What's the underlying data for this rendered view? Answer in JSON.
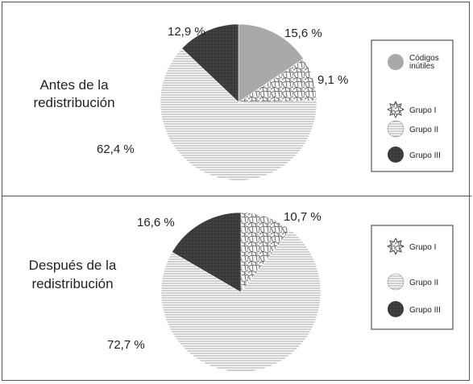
{
  "chart_data": [
    {
      "type": "pie",
      "title_lines": [
        "Antes de la",
        "redistribución"
      ],
      "slices": [
        {
          "name": "Códigos inútiles",
          "value": 15.6,
          "label": "15,6 %",
          "pattern": "gray"
        },
        {
          "name": "Grupo I",
          "value": 9.1,
          "label": "9,1 %",
          "pattern": "cells"
        },
        {
          "name": "Grupo II",
          "value": 62.4,
          "label": "62,4 %",
          "pattern": "stripes"
        },
        {
          "name": "Grupo III",
          "value": 12.9,
          "label": "12,9 %",
          "pattern": "dark"
        }
      ],
      "legend": [
        {
          "label_lines": [
            "Códigos",
            "inútiles"
          ],
          "pattern": "gray"
        },
        {
          "label_lines": [
            "Grupo I"
          ],
          "pattern": "cells"
        },
        {
          "label_lines": [
            "Grupo II"
          ],
          "pattern": "stripes"
        },
        {
          "label_lines": [
            "Grupo III"
          ],
          "pattern": "dark"
        }
      ],
      "legend_position": "right"
    },
    {
      "type": "pie",
      "title_lines": [
        "Después de la",
        "redistribución"
      ],
      "slices": [
        {
          "name": "Grupo I",
          "value": 10.7,
          "label": "10,7 %",
          "pattern": "cells"
        },
        {
          "name": "Grupo II",
          "value": 72.7,
          "label": "72,7 %",
          "pattern": "stripes"
        },
        {
          "name": "Grupo III",
          "value": 16.6,
          "label": "16,6 %",
          "pattern": "dark"
        }
      ],
      "legend": [
        {
          "label_lines": [
            "Grupo I"
          ],
          "pattern": "cells"
        },
        {
          "label_lines": [
            "Grupo II"
          ],
          "pattern": "stripes"
        },
        {
          "label_lines": [
            "Grupo III"
          ],
          "pattern": "dark"
        }
      ],
      "legend_position": "right"
    }
  ],
  "colors": {
    "gray": "#a9a9a9",
    "dark": "#3b3b3b",
    "stripe_line": "#8a8a8a",
    "cells_fill": "#f4f4f4",
    "cells_line": "#555555",
    "border": "#555555"
  }
}
